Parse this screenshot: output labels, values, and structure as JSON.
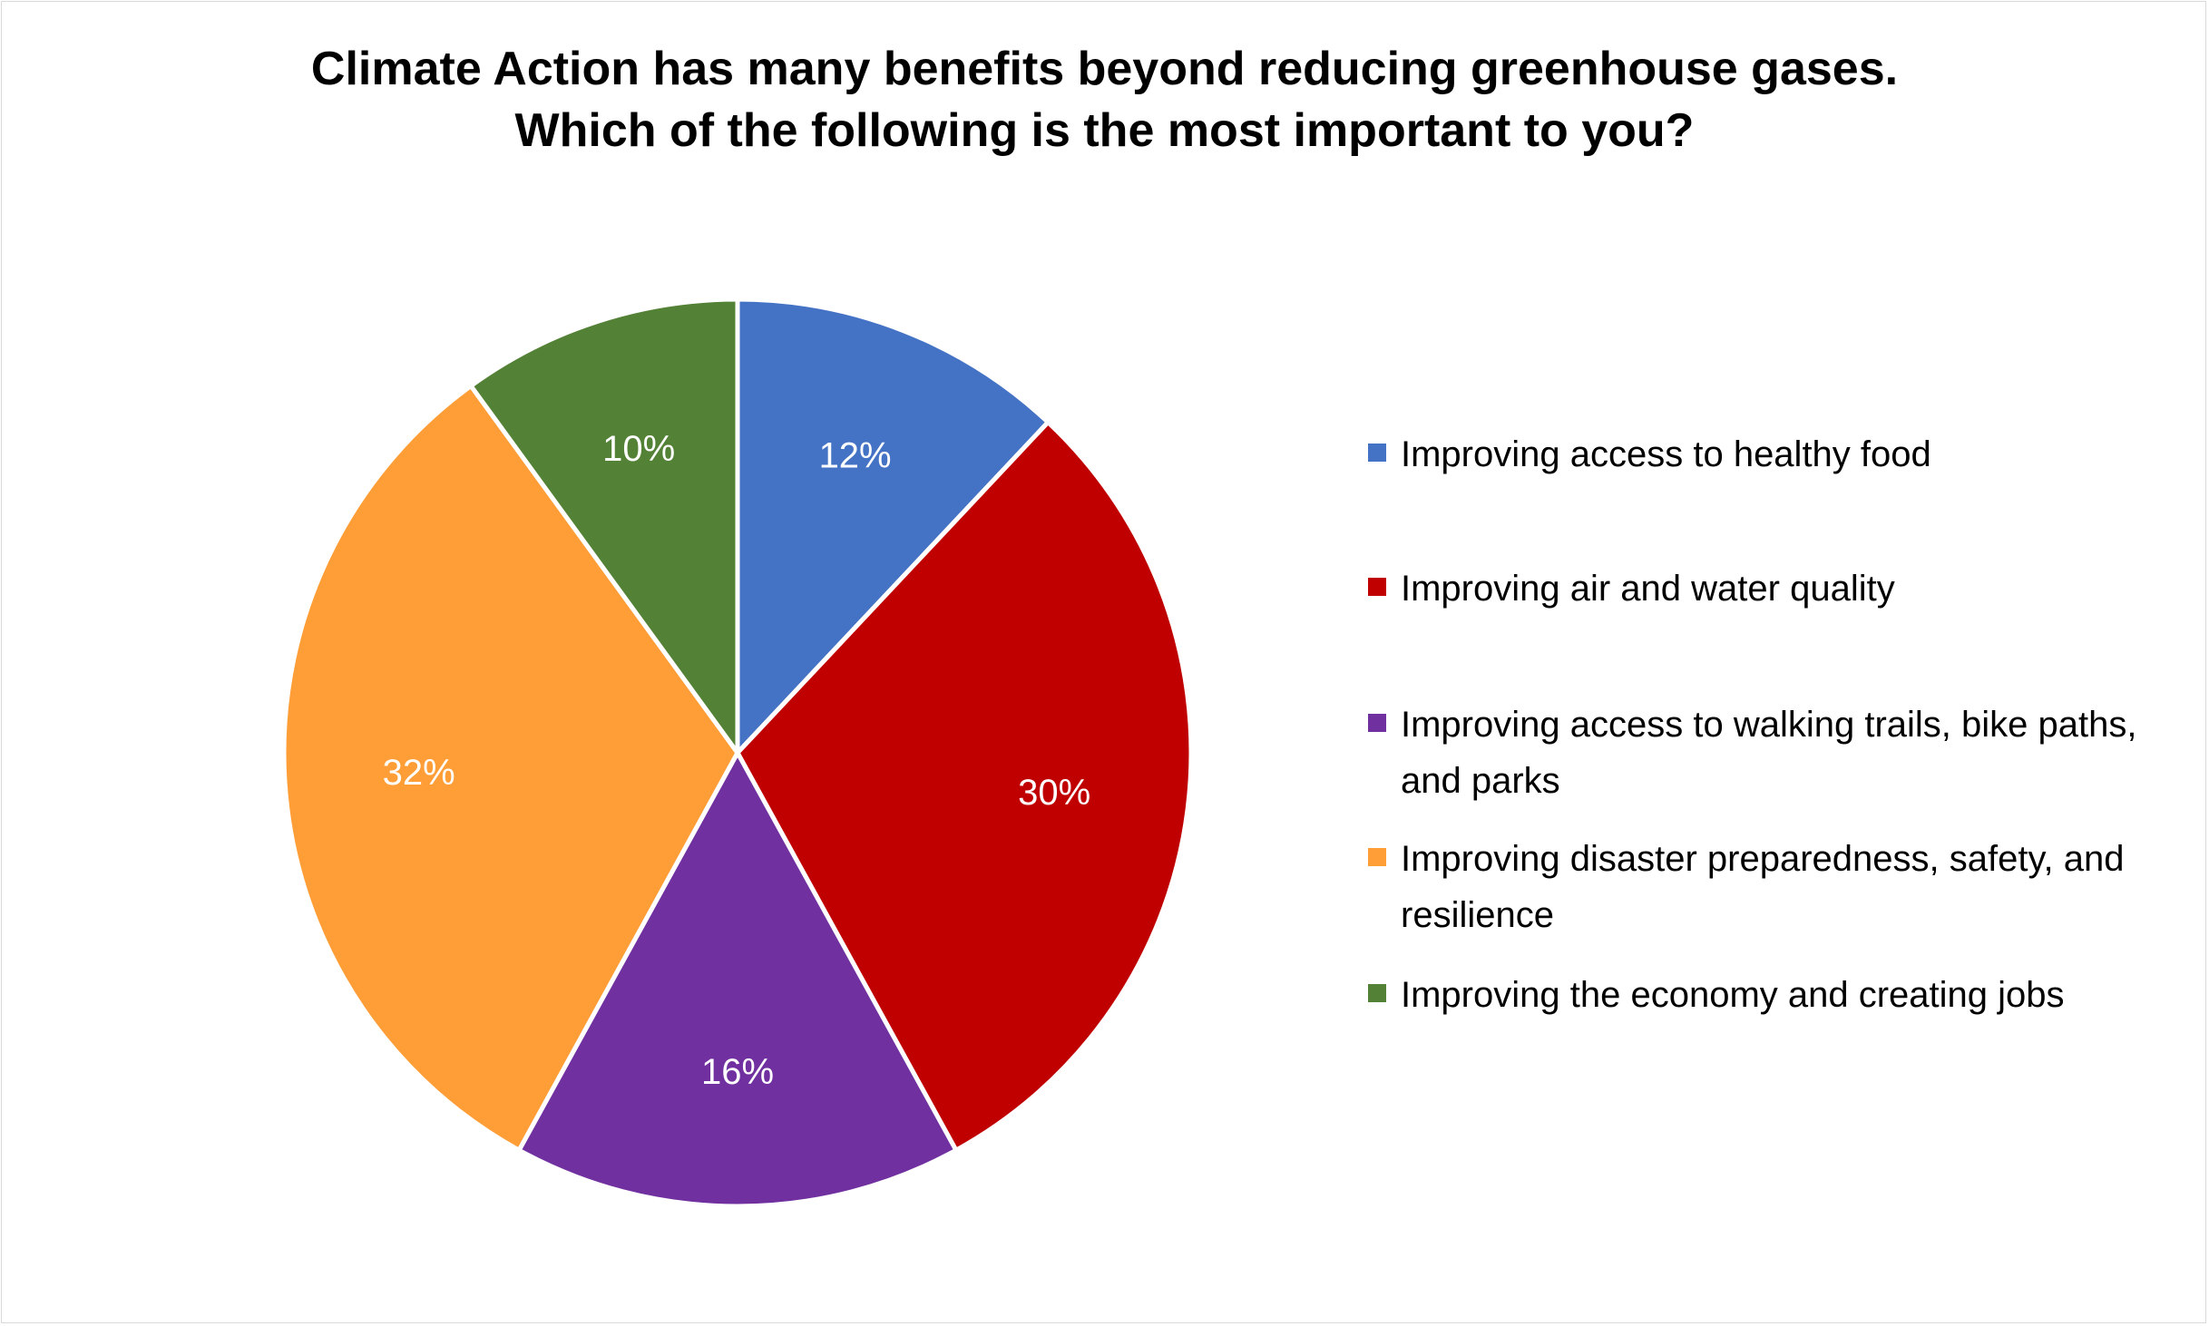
{
  "chart_data": {
    "type": "pie",
    "title_lines": [
      "Climate Action has many benefits beyond reducing greenhouse gases.",
      "Which of the following is the most important to you?"
    ],
    "categories": [
      "Improving access to healthy food",
      "Improving air and water quality",
      "Improving access to walking trails, bike paths, and parks",
      "Improving disaster preparedness, safety, and resilience",
      "Improving the economy and creating jobs"
    ],
    "values": [
      12,
      30,
      16,
      32,
      10
    ],
    "data_labels": [
      "12%",
      "30%",
      "16%",
      "32%",
      "10%"
    ],
    "colors": [
      "#4472c4",
      "#c00000",
      "#7030a0",
      "#ff9d37",
      "#538135"
    ],
    "start_angle_deg": 0,
    "direction": "clockwise",
    "legend_position": "right"
  }
}
